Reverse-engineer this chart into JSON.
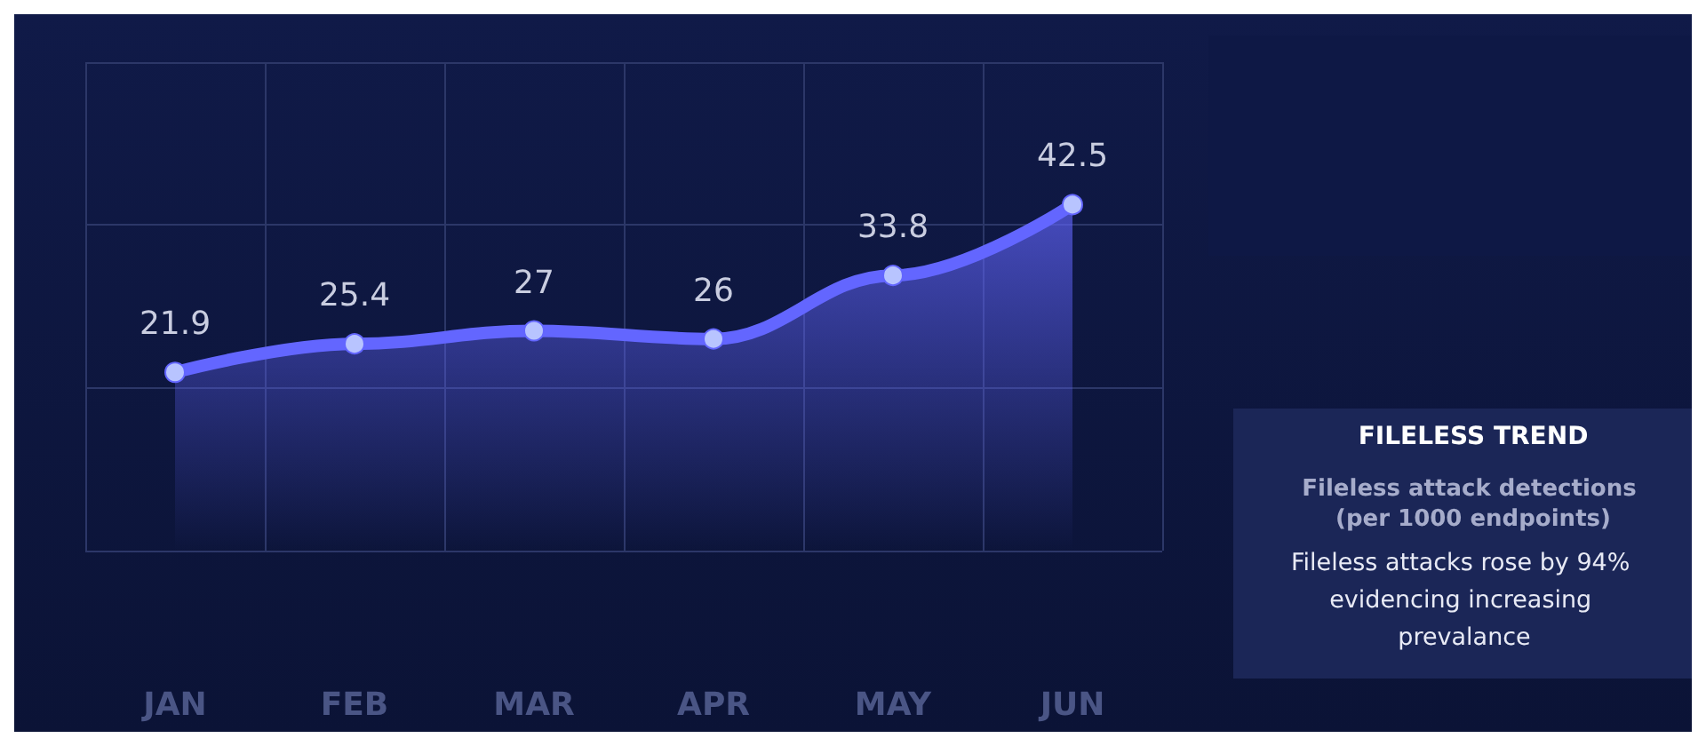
{
  "chart_data": {
    "type": "area",
    "title": "FILELESS TREND",
    "subtitle": "Fileless attack detections (per 1000 endpoints)",
    "annotations": [
      "Fileless attacks rose by 94% evidencing increasing prevalance"
    ],
    "categories": [
      "JAN",
      "FEB",
      "MAR",
      "APR",
      "MAY",
      "JUN"
    ],
    "series": [
      {
        "color": "#6366ff",
        "values": [
          21.9,
          25.4,
          27,
          26,
          33.8,
          42.5
        ]
      }
    ],
    "ylim": [
      0,
      60
    ],
    "yticks": [
      0,
      20,
      40,
      60
    ],
    "tick_labels": "x",
    "grid": true,
    "data_labels": true,
    "marker": "circle"
  }
}
